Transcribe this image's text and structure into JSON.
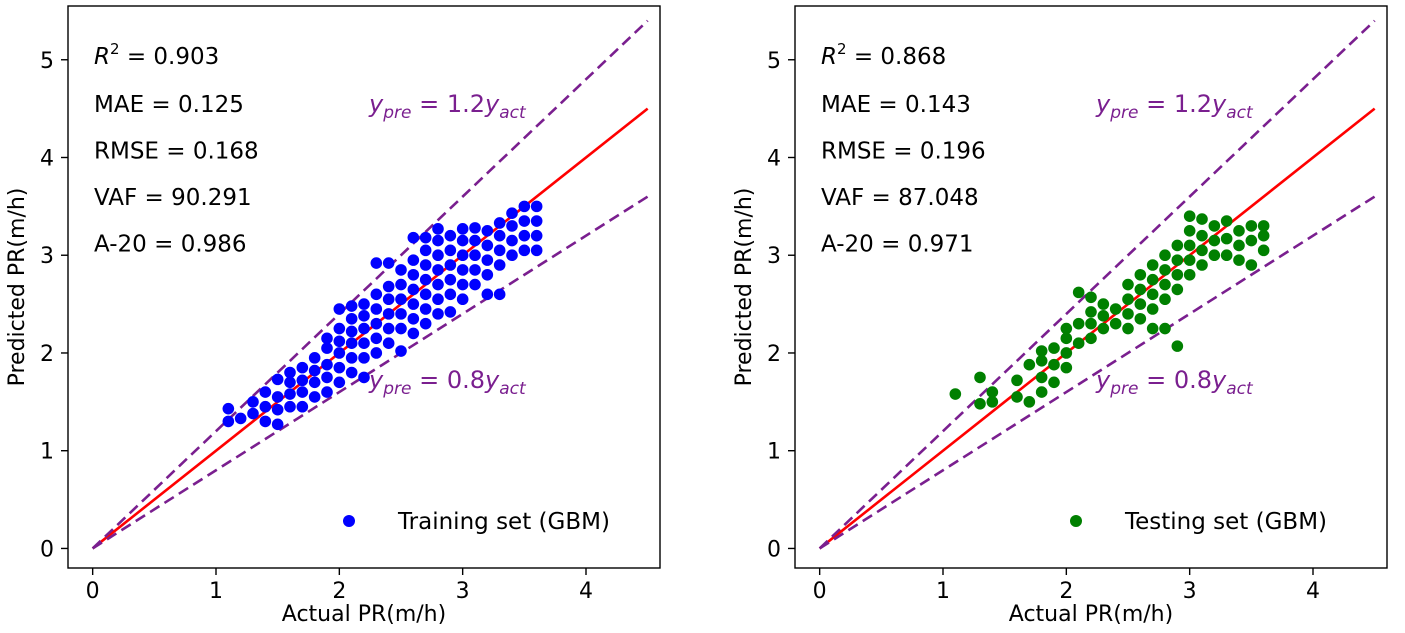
{
  "chart_data": [
    {
      "type": "scatter",
      "xlabel": "Actual PR(m/h)",
      "ylabel": "Predicted PR(m/h)",
      "xlim": [
        -0.2,
        4.6
      ],
      "ylim": [
        -0.2,
        5.55
      ],
      "xticks": [
        "0",
        "1",
        "2",
        "3",
        "4"
      ],
      "yticks": [
        "0",
        "1",
        "2",
        "3",
        "4",
        "5"
      ],
      "grid": false,
      "legend_placement": "lower-right",
      "series": [
        {
          "name": "Training set (GBM)",
          "color": "#0000ff",
          "marker": "circle",
          "points": [
            [
              1.1,
              1.3
            ],
            [
              1.1,
              1.43
            ],
            [
              1.2,
              1.33
            ],
            [
              1.3,
              1.38
            ],
            [
              1.3,
              1.5
            ],
            [
              1.4,
              1.3
            ],
            [
              1.4,
              1.45
            ],
            [
              1.4,
              1.6
            ],
            [
              1.5,
              1.27
            ],
            [
              1.5,
              1.42
            ],
            [
              1.5,
              1.55
            ],
            [
              1.5,
              1.73
            ],
            [
              1.6,
              1.45
            ],
            [
              1.6,
              1.58
            ],
            [
              1.6,
              1.7
            ],
            [
              1.6,
              1.8
            ],
            [
              1.7,
              1.45
            ],
            [
              1.7,
              1.6
            ],
            [
              1.7,
              1.72
            ],
            [
              1.7,
              1.85
            ],
            [
              1.8,
              1.55
            ],
            [
              1.8,
              1.7
            ],
            [
              1.8,
              1.82
            ],
            [
              1.8,
              1.95
            ],
            [
              1.9,
              1.6
            ],
            [
              1.9,
              1.75
            ],
            [
              1.9,
              1.88
            ],
            [
              1.9,
              2.05
            ],
            [
              1.9,
              2.15
            ],
            [
              2.0,
              1.7
            ],
            [
              2.0,
              1.85
            ],
            [
              2.0,
              2.0
            ],
            [
              2.0,
              2.12
            ],
            [
              2.0,
              2.25
            ],
            [
              2.0,
              2.45
            ],
            [
              2.1,
              1.8
            ],
            [
              2.1,
              1.95
            ],
            [
              2.1,
              2.1
            ],
            [
              2.1,
              2.22
            ],
            [
              2.1,
              2.35
            ],
            [
              2.1,
              2.48
            ],
            [
              2.2,
              1.75
            ],
            [
              2.2,
              1.95
            ],
            [
              2.2,
              2.1
            ],
            [
              2.2,
              2.25
            ],
            [
              2.2,
              2.38
            ],
            [
              2.2,
              2.5
            ],
            [
              2.3,
              2.0
            ],
            [
              2.3,
              2.15
            ],
            [
              2.3,
              2.3
            ],
            [
              2.3,
              2.45
            ],
            [
              2.3,
              2.6
            ],
            [
              2.3,
              2.92
            ],
            [
              2.4,
              2.1
            ],
            [
              2.4,
              2.25
            ],
            [
              2.4,
              2.4
            ],
            [
              2.4,
              2.55
            ],
            [
              2.4,
              2.68
            ],
            [
              2.4,
              2.92
            ],
            [
              2.5,
              2.02
            ],
            [
              2.5,
              2.25
            ],
            [
              2.5,
              2.4
            ],
            [
              2.5,
              2.55
            ],
            [
              2.5,
              2.7
            ],
            [
              2.5,
              2.85
            ],
            [
              2.6,
              2.2
            ],
            [
              2.6,
              2.35
            ],
            [
              2.6,
              2.5
            ],
            [
              2.6,
              2.65
            ],
            [
              2.6,
              2.8
            ],
            [
              2.6,
              2.95
            ],
            [
              2.6,
              3.18
            ],
            [
              2.7,
              2.3
            ],
            [
              2.7,
              2.45
            ],
            [
              2.7,
              2.6
            ],
            [
              2.7,
              2.75
            ],
            [
              2.7,
              2.9
            ],
            [
              2.7,
              3.05
            ],
            [
              2.7,
              3.18
            ],
            [
              2.8,
              2.4
            ],
            [
              2.8,
              2.55
            ],
            [
              2.8,
              2.7
            ],
            [
              2.8,
              2.85
            ],
            [
              2.8,
              3.0
            ],
            [
              2.8,
              3.15
            ],
            [
              2.8,
              3.27
            ],
            [
              2.9,
              2.42
            ],
            [
              2.9,
              2.6
            ],
            [
              2.9,
              2.75
            ],
            [
              2.9,
              2.9
            ],
            [
              2.9,
              3.05
            ],
            [
              2.9,
              3.2
            ],
            [
              3.0,
              2.55
            ],
            [
              3.0,
              2.7
            ],
            [
              3.0,
              2.85
            ],
            [
              3.0,
              3.0
            ],
            [
              3.0,
              3.15
            ],
            [
              3.0,
              3.27
            ],
            [
              3.1,
              2.7
            ],
            [
              3.1,
              2.85
            ],
            [
              3.1,
              3.0
            ],
            [
              3.1,
              3.15
            ],
            [
              3.1,
              3.28
            ],
            [
              3.2,
              2.6
            ],
            [
              3.2,
              2.8
            ],
            [
              3.2,
              2.95
            ],
            [
              3.2,
              3.1
            ],
            [
              3.2,
              3.25
            ],
            [
              3.3,
              2.6
            ],
            [
              3.3,
              2.9
            ],
            [
              3.3,
              3.05
            ],
            [
              3.3,
              3.2
            ],
            [
              3.3,
              3.33
            ],
            [
              3.4,
              3.0
            ],
            [
              3.4,
              3.15
            ],
            [
              3.4,
              3.3
            ],
            [
              3.4,
              3.43
            ],
            [
              3.5,
              3.05
            ],
            [
              3.5,
              3.2
            ],
            [
              3.5,
              3.35
            ],
            [
              3.5,
              3.5
            ],
            [
              3.6,
              3.05
            ],
            [
              3.6,
              3.2
            ],
            [
              3.6,
              3.35
            ],
            [
              3.6,
              3.5
            ]
          ]
        },
        {
          "name": "Testing set (GBM)",
          "color": "#008000",
          "marker": "circle",
          "points": [
            [
              1.1,
              1.58
            ],
            [
              1.3,
              1.48
            ],
            [
              1.3,
              1.75
            ],
            [
              1.4,
              1.5
            ],
            [
              1.4,
              1.6
            ],
            [
              1.6,
              1.55
            ],
            [
              1.6,
              1.72
            ],
            [
              1.7,
              1.5
            ],
            [
              1.7,
              1.88
            ],
            [
              1.8,
              1.6
            ],
            [
              1.8,
              1.75
            ],
            [
              1.8,
              1.92
            ],
            [
              1.8,
              2.02
            ],
            [
              1.9,
              1.7
            ],
            [
              1.9,
              1.88
            ],
            [
              1.9,
              2.05
            ],
            [
              2.0,
              1.85
            ],
            [
              2.0,
              2.0
            ],
            [
              2.0,
              2.15
            ],
            [
              2.0,
              2.25
            ],
            [
              2.1,
              2.1
            ],
            [
              2.1,
              2.3
            ],
            [
              2.1,
              2.62
            ],
            [
              2.2,
              2.15
            ],
            [
              2.2,
              2.3
            ],
            [
              2.2,
              2.42
            ],
            [
              2.2,
              2.57
            ],
            [
              2.3,
              2.25
            ],
            [
              2.3,
              2.38
            ],
            [
              2.3,
              2.5
            ],
            [
              2.4,
              2.3
            ],
            [
              2.4,
              2.45
            ],
            [
              2.5,
              2.25
            ],
            [
              2.5,
              2.4
            ],
            [
              2.5,
              2.55
            ],
            [
              2.5,
              2.7
            ],
            [
              2.6,
              2.35
            ],
            [
              2.6,
              2.5
            ],
            [
              2.6,
              2.65
            ],
            [
              2.6,
              2.8
            ],
            [
              2.7,
              2.25
            ],
            [
              2.7,
              2.45
            ],
            [
              2.7,
              2.6
            ],
            [
              2.7,
              2.75
            ],
            [
              2.7,
              2.9
            ],
            [
              2.8,
              2.25
            ],
            [
              2.8,
              2.55
            ],
            [
              2.8,
              2.7
            ],
            [
              2.8,
              2.85
            ],
            [
              2.8,
              3.0
            ],
            [
              2.9,
              2.07
            ],
            [
              2.9,
              2.65
            ],
            [
              2.9,
              2.8
            ],
            [
              2.9,
              2.95
            ],
            [
              2.9,
              3.1
            ],
            [
              3.0,
              2.8
            ],
            [
              3.0,
              2.95
            ],
            [
              3.0,
              3.1
            ],
            [
              3.0,
              3.25
            ],
            [
              3.0,
              3.4
            ],
            [
              3.1,
              2.9
            ],
            [
              3.1,
              3.05
            ],
            [
              3.1,
              3.2
            ],
            [
              3.1,
              3.37
            ],
            [
              3.2,
              3.0
            ],
            [
              3.2,
              3.15
            ],
            [
              3.2,
              3.3
            ],
            [
              3.3,
              3.0
            ],
            [
              3.3,
              3.17
            ],
            [
              3.3,
              3.35
            ],
            [
              3.4,
              2.95
            ],
            [
              3.4,
              3.1
            ],
            [
              3.4,
              3.25
            ],
            [
              3.5,
              2.9
            ],
            [
              3.5,
              3.15
            ],
            [
              3.5,
              3.3
            ],
            [
              3.6,
              3.05
            ],
            [
              3.6,
              3.2
            ],
            [
              3.6,
              3.3
            ]
          ]
        }
      ],
      "lines": [
        {
          "kind": "solid",
          "color": "#ff0000",
          "slope": 1.0,
          "x": [
            0,
            4.5
          ]
        },
        {
          "kind": "dashed",
          "color": "#7a1f8f",
          "slope": 1.2,
          "x": [
            0,
            4.5
          ]
        },
        {
          "kind": "dashed",
          "color": "#7a1f8f",
          "slope": 0.8,
          "x": [
            0,
            4.5
          ]
        }
      ],
      "line_labels": {
        "upper": {
          "y": "y",
          "y_sub": "pre",
          "eq": " = 1.2",
          "x": "y",
          "x_sub": "act"
        },
        "lower": {
          "y": "y",
          "y_sub": "pre",
          "eq": " = 0.8",
          "x": "y",
          "x_sub": "act"
        }
      },
      "line_label_color": "#7a1f8f",
      "metrics": [
        {
          "r2_symbol": "R",
          "r2_sup": "2",
          "r2_value": " = 0.903",
          "mae": "MAE = 0.125",
          "rmse": "RMSE = 0.168",
          "vaf": "VAF = 90.291",
          "a20": "A-20 = 0.986"
        },
        {
          "r2_symbol": "R",
          "r2_sup": "2",
          "r2_value": " = 0.868",
          "mae": "MAE = 0.143",
          "rmse": "RMSE = 0.196",
          "vaf": "VAF = 87.048",
          "a20": "A-20 = 0.971"
        }
      ]
    }
  ]
}
